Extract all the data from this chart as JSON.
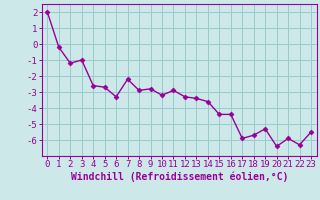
{
  "x": [
    0,
    1,
    2,
    3,
    4,
    5,
    6,
    7,
    8,
    9,
    10,
    11,
    12,
    13,
    14,
    15,
    16,
    17,
    18,
    19,
    20,
    21,
    22,
    23
  ],
  "y": [
    2.0,
    -0.2,
    -1.2,
    -1.0,
    -2.6,
    -2.7,
    -3.3,
    -2.2,
    -2.9,
    -2.8,
    -3.2,
    -2.9,
    -3.3,
    -3.4,
    -3.6,
    -4.4,
    -4.4,
    -5.9,
    -5.7,
    -5.3,
    -6.4,
    -5.9,
    -6.3,
    -5.5
  ],
  "line_color": "#990099",
  "marker": "D",
  "marker_size": 2.5,
  "background_color": "#cce8e8",
  "grid_color": "#99cccc",
  "xlabel": "Windchill (Refroidissement éolien,°C)",
  "xlim_left": -0.5,
  "xlim_right": 23.5,
  "ylim_bottom": -7.0,
  "ylim_top": 2.5,
  "yticks": [
    2,
    1,
    0,
    -1,
    -2,
    -3,
    -4,
    -5,
    -6
  ],
  "xticks": [
    0,
    1,
    2,
    3,
    4,
    5,
    6,
    7,
    8,
    9,
    10,
    11,
    12,
    13,
    14,
    15,
    16,
    17,
    18,
    19,
    20,
    21,
    22,
    23
  ],
  "tick_color": "#990099",
  "label_color": "#990099",
  "axis_color": "#990099",
  "tick_fontsize": 6.5,
  "xlabel_fontsize": 7,
  "linewidth": 1.0
}
